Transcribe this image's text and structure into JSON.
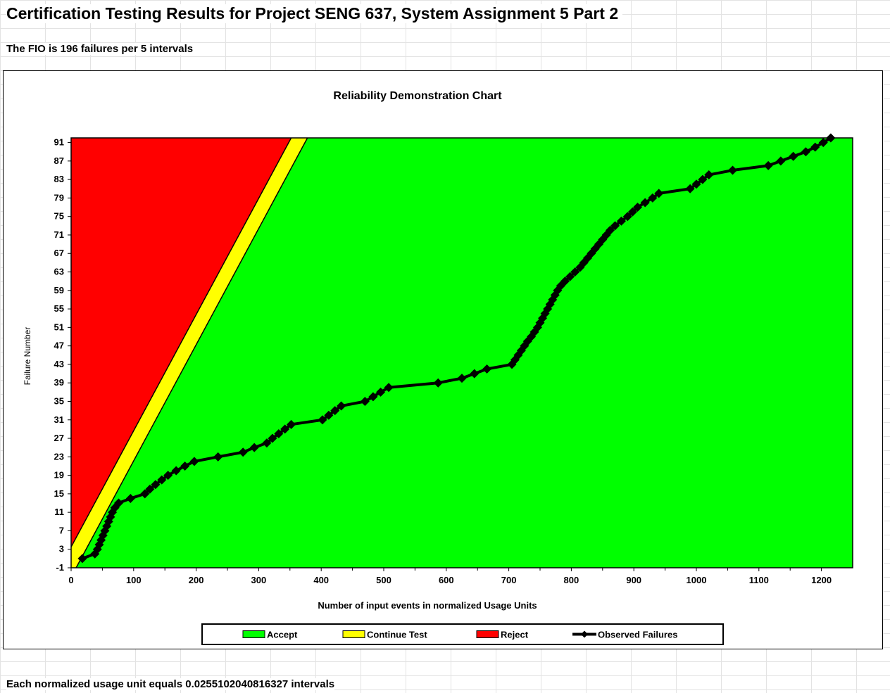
{
  "sheet": {
    "title": "Certification Testing Results for Project SENG 637, System Assignment 5 Part 2",
    "fio_note": "The FIO is 196 failures per 5 intervals",
    "footer_note": "Each normalized usage unit equals 0.0255102040816327 intervals"
  },
  "colors": {
    "accent_region": "#00ff00",
    "continue_region": "#ffff00",
    "reject_region": "#ff0000",
    "observed_line": "#000000"
  },
  "chart_data": {
    "type": "area",
    "title": "Reliability Demonstration Chart",
    "xlabel": "Number of input events in normalized Usage Units",
    "ylabel": "Failure Number",
    "xlim": [
      0,
      1250
    ],
    "ylim": [
      -1,
      92
    ],
    "x_ticks": [
      0,
      100,
      200,
      300,
      400,
      500,
      600,
      700,
      800,
      900,
      1000,
      1100,
      1200
    ],
    "y_ticks": [
      -1,
      3,
      7,
      11,
      15,
      19,
      23,
      27,
      31,
      35,
      39,
      43,
      47,
      51,
      55,
      59,
      63,
      67,
      71,
      75,
      79,
      83,
      87,
      91
    ],
    "grid": false,
    "legend_position": "bottom",
    "legend": [
      "Accept",
      "Continue Test",
      "Reject",
      "Observed Failures"
    ],
    "regions": {
      "reject_boundary": [
        [
          0,
          3.5
        ],
        [
          352,
          92
        ]
      ],
      "accept_boundary": [
        [
          8,
          -1
        ],
        [
          378,
          92
        ]
      ]
    },
    "series": [
      {
        "name": "Observed Failures",
        "points": [
          [
            18,
            1
          ],
          [
            38,
            2
          ],
          [
            42,
            3
          ],
          [
            45,
            4
          ],
          [
            48,
            5
          ],
          [
            51,
            6
          ],
          [
            54,
            7
          ],
          [
            57,
            8
          ],
          [
            60,
            9
          ],
          [
            63,
            10
          ],
          [
            66,
            11
          ],
          [
            70,
            12
          ],
          [
            76,
            13
          ],
          [
            95,
            14
          ],
          [
            118,
            15
          ],
          [
            126,
            16
          ],
          [
            135,
            17
          ],
          [
            145,
            18
          ],
          [
            155,
            19
          ],
          [
            168,
            20
          ],
          [
            182,
            21
          ],
          [
            197,
            22
          ],
          [
            235,
            23
          ],
          [
            275,
            24
          ],
          [
            293,
            25
          ],
          [
            313,
            26
          ],
          [
            322,
            27
          ],
          [
            332,
            28
          ],
          [
            342,
            29
          ],
          [
            352,
            30
          ],
          [
            402,
            31
          ],
          [
            412,
            32
          ],
          [
            422,
            33
          ],
          [
            432,
            34
          ],
          [
            470,
            35
          ],
          [
            483,
            36
          ],
          [
            495,
            37
          ],
          [
            508,
            38
          ],
          [
            587,
            39
          ],
          [
            625,
            40
          ],
          [
            645,
            41
          ],
          [
            665,
            42
          ],
          [
            705,
            43
          ],
          [
            710,
            44
          ],
          [
            715,
            45
          ],
          [
            720,
            46
          ],
          [
            725,
            47
          ],
          [
            730,
            48
          ],
          [
            736,
            49
          ],
          [
            741,
            50
          ],
          [
            746,
            51
          ],
          [
            750,
            52
          ],
          [
            754,
            53
          ],
          [
            758,
            54
          ],
          [
            762,
            55
          ],
          [
            766,
            56
          ],
          [
            770,
            57
          ],
          [
            774,
            58
          ],
          [
            778,
            59
          ],
          [
            783,
            60
          ],
          [
            790,
            61
          ],
          [
            798,
            62
          ],
          [
            806,
            63
          ],
          [
            814,
            64
          ],
          [
            820,
            65
          ],
          [
            826,
            66
          ],
          [
            832,
            67
          ],
          [
            838,
            68
          ],
          [
            844,
            69
          ],
          [
            850,
            70
          ],
          [
            856,
            71
          ],
          [
            862,
            72
          ],
          [
            870,
            73
          ],
          [
            880,
            74
          ],
          [
            890,
            75
          ],
          [
            898,
            76
          ],
          [
            906,
            77
          ],
          [
            918,
            78
          ],
          [
            930,
            79
          ],
          [
            940,
            80
          ],
          [
            990,
            81
          ],
          [
            1000,
            82
          ],
          [
            1010,
            83
          ],
          [
            1020,
            84
          ],
          [
            1058,
            85
          ],
          [
            1115,
            86
          ],
          [
            1135,
            87
          ],
          [
            1155,
            88
          ],
          [
            1175,
            89
          ],
          [
            1190,
            90
          ],
          [
            1203,
            91
          ],
          [
            1215,
            92
          ]
        ]
      }
    ]
  }
}
